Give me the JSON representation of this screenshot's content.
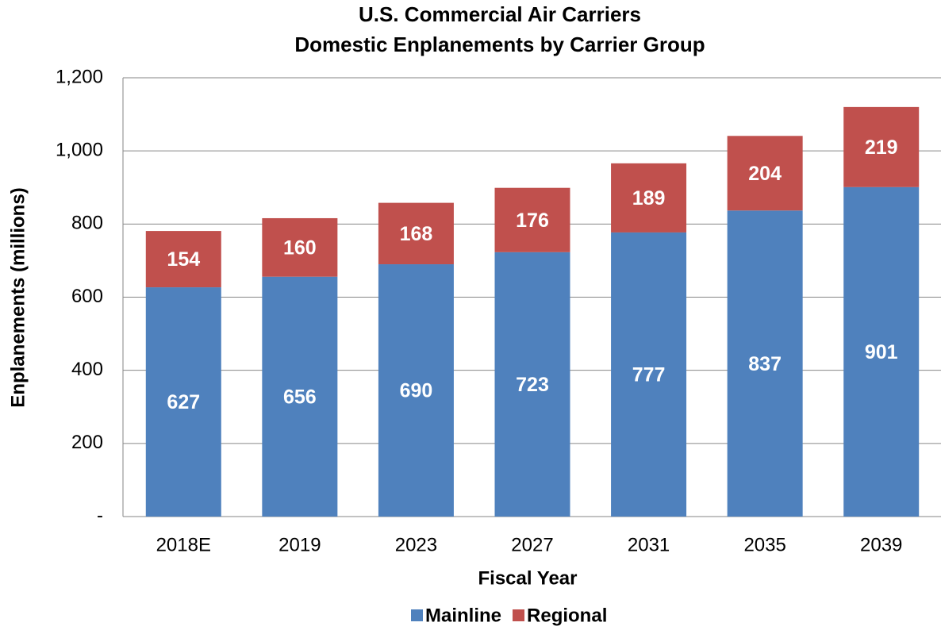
{
  "chart_data": {
    "type": "stacked_bar",
    "title": "U.S. Commercial Air Carriers",
    "subtitle": "Domestic Enplanements by Carrier Group",
    "x_label": "Fiscal Year",
    "y_label": "Enplanements (millions)",
    "categories": [
      "2018E",
      "2019",
      "2023",
      "2027",
      "2031",
      "2035",
      "2039"
    ],
    "series": [
      {
        "name": "Mainline",
        "color": "#4f81bd",
        "values": [
          627,
          656,
          690,
          723,
          777,
          837,
          901
        ]
      },
      {
        "name": "Regional",
        "color": "#c0504d",
        "values": [
          154,
          160,
          168,
          176,
          189,
          204,
          219
        ]
      }
    ],
    "ylim": [
      0,
      1200
    ],
    "yticks": [
      {
        "value": 0,
        "label": "-"
      },
      200,
      400,
      600,
      800,
      {
        "value": 1000,
        "label": "1,000"
      },
      {
        "value": 1200,
        "label": "1,200"
      }
    ],
    "grid": true,
    "legend": "bottom"
  }
}
